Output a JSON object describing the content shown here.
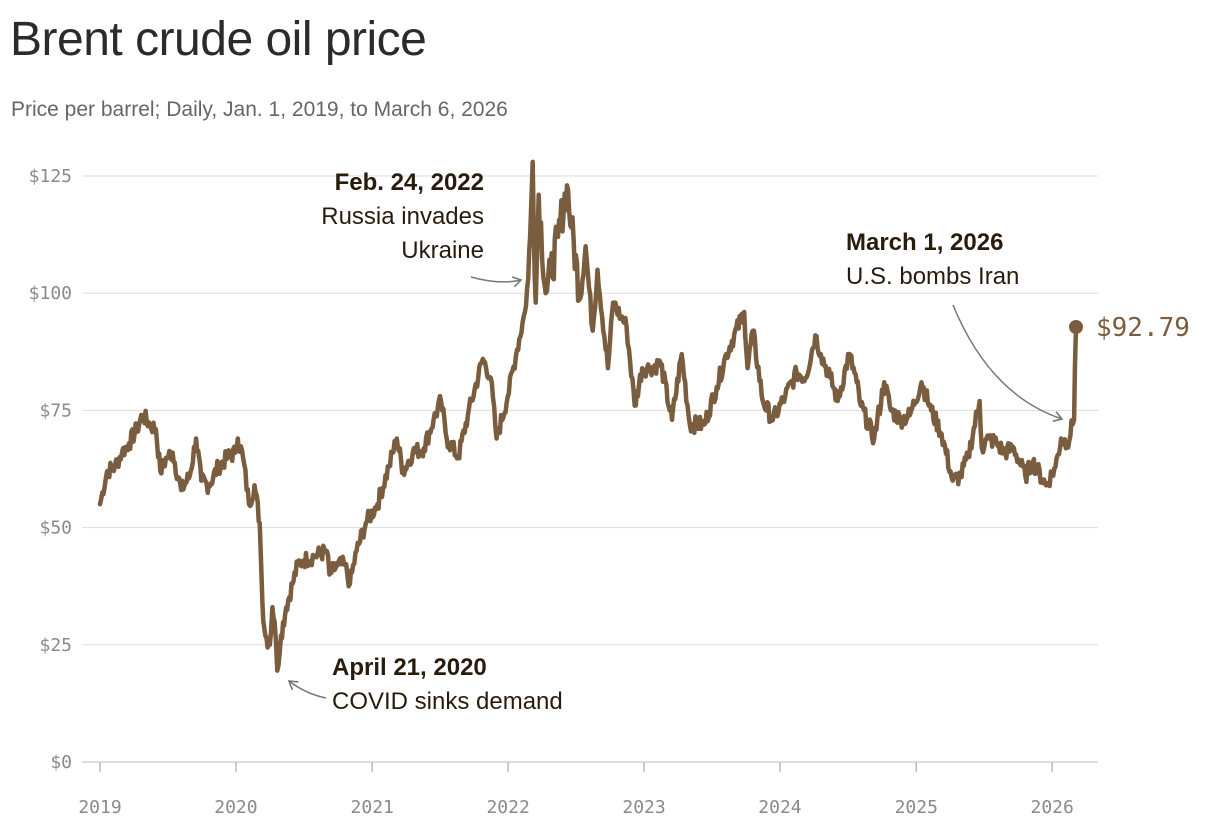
{
  "header": {
    "title": "Brent crude oil price",
    "subtitle": "Price per barrel; Daily, Jan. 1, 2019, to March 6, 2026"
  },
  "colors": {
    "line": "#7a5c3e",
    "grid": "#dddddd",
    "axis": "#bbbbbb",
    "tick_text": "#8a8a8a",
    "annotation_text": "#2a1c0c",
    "arrow": "#777777"
  },
  "chart_data": {
    "type": "line",
    "title": "Brent crude oil price",
    "subtitle": "Price per barrel; Daily, Jan. 1, 2019, to March 6, 2026",
    "x_range": [
      "2019-01-01",
      "2026-03-06"
    ],
    "ylim": [
      0,
      125
    ],
    "grid": true,
    "y_ticks": [
      {
        "value": 0,
        "label": "$0"
      },
      {
        "value": 25,
        "label": "$25"
      },
      {
        "value": 50,
        "label": "$50"
      },
      {
        "value": 75,
        "label": "$75"
      },
      {
        "value": 100,
        "label": "$100"
      },
      {
        "value": 125,
        "label": "$125"
      }
    ],
    "x_ticks": [
      {
        "value": "2019-01-01",
        "label": "2019"
      },
      {
        "value": "2020-01-01",
        "label": "2020"
      },
      {
        "value": "2021-01-01",
        "label": "2021"
      },
      {
        "value": "2022-01-01",
        "label": "2022"
      },
      {
        "value": "2023-01-01",
        "label": "2023"
      },
      {
        "value": "2024-01-01",
        "label": "2024"
      },
      {
        "value": "2025-01-01",
        "label": "2025"
      },
      {
        "value": "2026-01-01",
        "label": "2026"
      }
    ],
    "series": [
      {
        "points": [
          [
            "2019-01-01",
            55
          ],
          [
            "2019-01-20",
            62
          ],
          [
            "2019-02-10",
            63
          ],
          [
            "2019-03-01",
            66
          ],
          [
            "2019-03-20",
            68
          ],
          [
            "2019-04-10",
            71
          ],
          [
            "2019-04-25",
            74
          ],
          [
            "2019-05-15",
            72
          ],
          [
            "2019-05-31",
            71
          ],
          [
            "2019-06-12",
            62
          ],
          [
            "2019-06-30",
            65
          ],
          [
            "2019-07-15",
            66
          ],
          [
            "2019-08-07",
            58
          ],
          [
            "2019-08-30",
            61
          ],
          [
            "2019-09-16",
            69
          ],
          [
            "2019-09-30",
            60
          ],
          [
            "2019-10-20",
            59
          ],
          [
            "2019-11-15",
            63
          ],
          [
            "2019-12-10",
            65
          ],
          [
            "2019-12-31",
            66
          ],
          [
            "2020-01-06",
            69
          ],
          [
            "2020-01-20",
            65
          ],
          [
            "2020-02-05",
            55
          ],
          [
            "2020-02-20",
            59
          ],
          [
            "2020-03-05",
            51
          ],
          [
            "2020-03-12",
            34
          ],
          [
            "2020-03-20",
            27
          ],
          [
            "2020-04-01",
            25
          ],
          [
            "2020-04-08",
            33
          ],
          [
            "2020-04-14",
            30
          ],
          [
            "2020-04-21",
            19.5
          ],
          [
            "2020-05-01",
            27
          ],
          [
            "2020-05-15",
            33
          ],
          [
            "2020-06-01",
            38
          ],
          [
            "2020-06-15",
            42
          ],
          [
            "2020-07-01",
            43
          ],
          [
            "2020-08-01",
            44
          ],
          [
            "2020-09-01",
            45
          ],
          [
            "2020-09-08",
            40
          ],
          [
            "2020-10-01",
            42
          ],
          [
            "2020-10-20",
            42
          ],
          [
            "2020-11-02",
            38
          ],
          [
            "2020-11-20",
            45
          ],
          [
            "2020-12-15",
            51
          ],
          [
            "2021-01-15",
            55
          ],
          [
            "2021-02-15",
            63
          ],
          [
            "2021-03-08",
            69
          ],
          [
            "2021-03-25",
            62
          ],
          [
            "2021-04-20",
            66
          ],
          [
            "2021-05-20",
            67
          ],
          [
            "2021-06-15",
            73
          ],
          [
            "2021-07-05",
            77
          ],
          [
            "2021-07-20",
            69
          ],
          [
            "2021-08-20",
            65
          ],
          [
            "2021-09-15",
            74
          ],
          [
            "2021-10-25",
            86
          ],
          [
            "2021-11-15",
            82
          ],
          [
            "2021-12-01",
            69
          ],
          [
            "2021-12-31",
            78
          ],
          [
            "2022-01-25",
            88
          ],
          [
            "2022-02-15",
            96
          ],
          [
            "2022-02-24",
            103
          ],
          [
            "2022-03-01",
            112
          ],
          [
            "2022-03-08",
            128
          ],
          [
            "2022-03-16",
            98
          ],
          [
            "2022-03-24",
            121
          ],
          [
            "2022-04-12",
            100
          ],
          [
            "2022-04-25",
            104
          ],
          [
            "2022-05-15",
            112
          ],
          [
            "2022-06-08",
            123
          ],
          [
            "2022-06-20",
            114
          ],
          [
            "2022-07-14",
            99
          ],
          [
            "2022-07-28",
            110
          ],
          [
            "2022-08-16",
            92
          ],
          [
            "2022-08-29",
            105
          ],
          [
            "2022-09-26",
            84
          ],
          [
            "2022-10-10",
            98
          ],
          [
            "2022-10-31",
            95
          ],
          [
            "2022-11-15",
            93
          ],
          [
            "2022-12-07",
            76
          ],
          [
            "2022-12-27",
            84
          ],
          [
            "2023-01-15",
            84
          ],
          [
            "2023-02-15",
            85
          ],
          [
            "2023-03-17",
            73
          ],
          [
            "2023-04-12",
            87
          ],
          [
            "2023-05-04",
            72
          ],
          [
            "2023-06-12",
            72
          ],
          [
            "2023-07-15",
            80
          ],
          [
            "2023-08-10",
            87
          ],
          [
            "2023-09-27",
            96
          ],
          [
            "2023-10-06",
            84
          ],
          [
            "2023-10-20",
            92
          ],
          [
            "2023-11-16",
            77
          ],
          [
            "2023-12-13",
            73
          ],
          [
            "2024-01-15",
            78
          ],
          [
            "2024-02-15",
            83
          ],
          [
            "2024-03-10",
            82
          ],
          [
            "2024-04-05",
            91
          ],
          [
            "2024-04-20",
            87
          ],
          [
            "2024-05-15",
            82
          ],
          [
            "2024-06-04",
            77
          ],
          [
            "2024-07-05",
            87
          ],
          [
            "2024-07-25",
            81
          ],
          [
            "2024-08-05",
            76
          ],
          [
            "2024-09-10",
            69
          ],
          [
            "2024-10-07",
            81
          ],
          [
            "2024-10-25",
            75
          ],
          [
            "2024-11-20",
            73
          ],
          [
            "2024-12-15",
            74
          ],
          [
            "2025-01-15",
            81
          ],
          [
            "2025-02-10",
            75
          ],
          [
            "2025-03-10",
            70
          ],
          [
            "2025-04-09",
            60
          ],
          [
            "2025-04-30",
            61
          ],
          [
            "2025-05-20",
            65
          ],
          [
            "2025-06-20",
            77
          ],
          [
            "2025-06-26",
            67
          ],
          [
            "2025-07-15",
            69
          ],
          [
            "2025-08-05",
            68
          ],
          [
            "2025-08-25",
            66
          ],
          [
            "2025-09-20",
            67
          ],
          [
            "2025-10-21",
            61
          ],
          [
            "2025-11-10",
            64
          ],
          [
            "2025-12-16",
            59
          ],
          [
            "2026-01-10",
            63
          ],
          [
            "2026-01-25",
            69
          ],
          [
            "2026-02-10",
            68
          ],
          [
            "2026-02-25",
            72
          ],
          [
            "2026-03-01",
            73
          ],
          [
            "2026-03-03",
            84
          ],
          [
            "2026-03-06",
            92.79
          ]
        ]
      }
    ],
    "end_point": {
      "date": "2026-03-06",
      "value": 92.79,
      "label": "$92.79"
    },
    "annotations": [
      {
        "id": "covid",
        "date": "2020-04-21",
        "value": 19.5,
        "bold": "April 21, 2020",
        "text": [
          "COVID sinks demand"
        ]
      },
      {
        "id": "ukraine",
        "date": "2022-02-24",
        "value": 103,
        "bold": "Feb. 24, 2022",
        "text": [
          "Russia invades",
          "Ukraine"
        ]
      },
      {
        "id": "iran",
        "date": "2026-03-01",
        "value": 73,
        "bold": "March 1, 2026",
        "text": [
          "U.S. bombs Iran"
        ]
      }
    ]
  }
}
